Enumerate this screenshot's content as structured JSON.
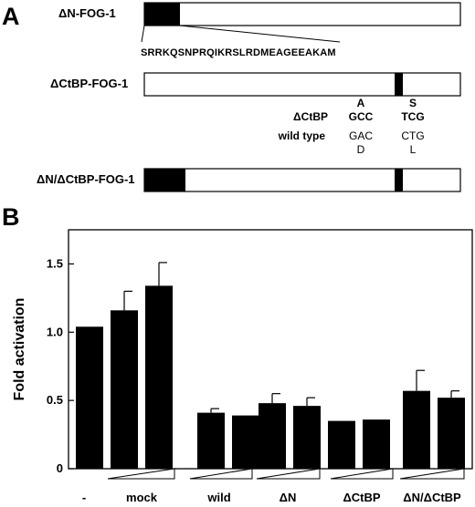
{
  "panels": {
    "a": "A",
    "b": "B"
  },
  "constructs": {
    "dn": {
      "label": "ΔN-FOG-1",
      "sequence": "SRRKQSNPRQIKRSLRDMEAGEEAKAM"
    },
    "dctbp": {
      "label": "ΔCtBP-FOG-1"
    },
    "dn_dctbp": {
      "label": "ΔN/ΔCtBP-FOG-1"
    }
  },
  "mutation_table": {
    "row1_name": "ΔCtBP",
    "row1_aa1": "A",
    "row1_aa2": "S",
    "row1_codon1": "GCC",
    "row1_codon2": "TCG",
    "row2_name": "wild type",
    "row2_codon1": "GAC",
    "row2_codon2": "CTG",
    "row2_aa1": "D",
    "row2_aa2": "L"
  },
  "chart_data": {
    "type": "bar",
    "ylabel": "Fold activation",
    "ylim": [
      0,
      1.75
    ],
    "yticks": [
      "0",
      "0.5",
      "1.0",
      "1.5"
    ],
    "grid": false,
    "groups": [
      "-",
      "mock",
      "wild",
      "ΔN",
      "ΔCtBP",
      "ΔN/ΔCtBP"
    ],
    "bars": [
      {
        "group": "-",
        "value": 1.04,
        "error": 0
      },
      {
        "group": "mock",
        "value": 1.16,
        "error": 0.14
      },
      {
        "group": "mock",
        "value": 1.34,
        "error": 0.17
      },
      {
        "group": "wild",
        "value": 0.41,
        "error": 0.03
      },
      {
        "group": "wild",
        "value": 0.39,
        "error": 0
      },
      {
        "group": "ΔN",
        "value": 0.48,
        "error": 0.07
      },
      {
        "group": "ΔN",
        "value": 0.46,
        "error": 0.06
      },
      {
        "group": "ΔCtBP",
        "value": 0.35,
        "error": 0
      },
      {
        "group": "ΔCtBP",
        "value": 0.36,
        "error": 0
      },
      {
        "group": "ΔN/ΔCtBP",
        "value": 0.57,
        "error": 0.15
      },
      {
        "group": "ΔN/ΔCtBP",
        "value": 0.52,
        "error": 0.05
      }
    ],
    "dose_ramps": [
      "mock",
      "wild",
      "ΔN",
      "ΔCtBP",
      "ΔN/ΔCtBP"
    ]
  }
}
